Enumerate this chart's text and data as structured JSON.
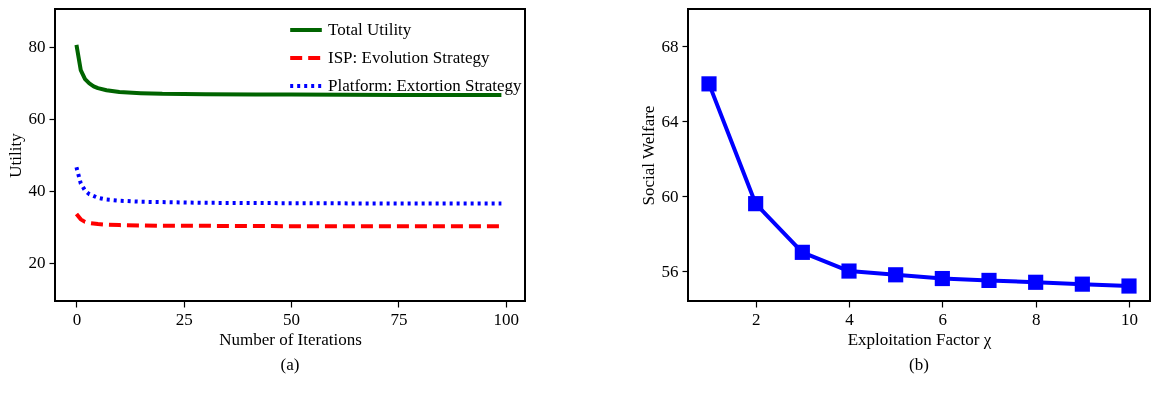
{
  "chart_data": [
    {
      "type": "line",
      "xlabel": "Number of Iterations",
      "ylabel": "Utility",
      "annotations": [
        "(a)"
      ],
      "xlim": [
        -5,
        104.5
      ],
      "ylim": [
        9.3,
        90.5
      ],
      "xticks": [
        0,
        25,
        50,
        75,
        100
      ],
      "yticks": [
        20,
        40,
        60,
        80
      ],
      "grid": false,
      "legend": "top right",
      "marker": "none",
      "series": [
        {
          "name": "Total Utility",
          "color": "#006400",
          "line_style": "solid",
          "x": [
            0,
            1,
            2,
            3,
            4,
            5,
            7,
            10,
            15,
            20,
            30,
            50,
            75,
            99
          ],
          "values": [
            80.5,
            73.5,
            71,
            69.8,
            69,
            68.5,
            67.9,
            67.4,
            67.1,
            66.9,
            66.8,
            66.7,
            66.6,
            66.6
          ]
        },
        {
          "name": "ISP: Evolution Strategy",
          "color": "#ff0000",
          "line_style": "dashed",
          "x": [
            0,
            1,
            2,
            3,
            5,
            7,
            10,
            15,
            20,
            30,
            50,
            75,
            99
          ],
          "values": [
            33.5,
            32,
            31.3,
            31,
            30.7,
            30.5,
            30.4,
            30.3,
            30.2,
            30.2,
            30.1,
            30.1,
            30.1
          ]
        },
        {
          "name": "Platform: Extortion Strategy",
          "color": "#0000ff",
          "line_style": "dotted",
          "x": [
            0,
            1,
            2,
            3,
            5,
            7,
            10,
            15,
            20,
            30,
            50,
            75,
            99
          ],
          "values": [
            46.5,
            42,
            40,
            39,
            38,
            37.5,
            37.2,
            36.9,
            36.8,
            36.6,
            36.5,
            36.4,
            36.4
          ]
        }
      ]
    },
    {
      "type": "line",
      "xlabel": "Exploitation Factor χ",
      "ylabel": "Social Welfare",
      "annotations": [
        "(b)"
      ],
      "xlim": [
        0.55,
        10.45
      ],
      "ylim": [
        54.4,
        70.0
      ],
      "xticks": [
        2,
        4,
        6,
        8,
        10
      ],
      "yticks": [
        56,
        60,
        64,
        68
      ],
      "grid": false,
      "legend": false,
      "marker": "square",
      "series": [
        {
          "color": "#0000ff",
          "line_style": "solid",
          "x": [
            1,
            2,
            3,
            4,
            5,
            6,
            7,
            8,
            9,
            10
          ],
          "values": [
            66.0,
            59.6,
            57.0,
            56.0,
            55.8,
            55.6,
            55.5,
            55.4,
            55.3,
            55.2
          ]
        }
      ]
    }
  ]
}
